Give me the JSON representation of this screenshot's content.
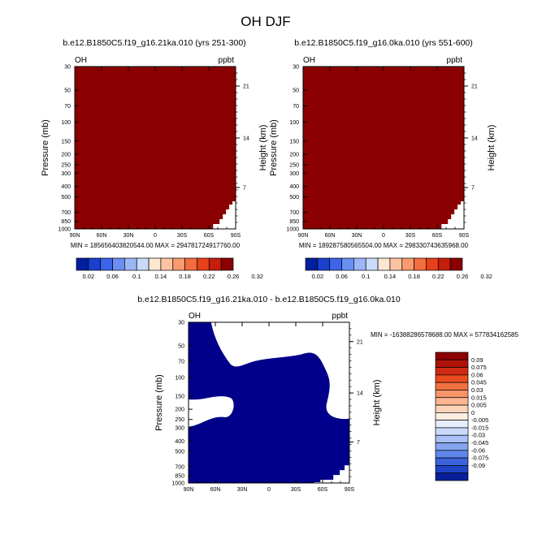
{
  "figure_title": "OH DJF",
  "colors": {
    "panel_fill": "#8b0000",
    "diff_fill": "#00008b",
    "background": "#ffffff"
  },
  "chart_data": [
    {
      "type": "heatmap",
      "title": "b.e12.B1850C5.f19_g16.21ka.010 (yrs 251-300)",
      "left_label": "OH",
      "right_label": "ppbt",
      "ylabel": "Pressure (mb)",
      "ylabel_right": "Height (km)",
      "x_ticks": [
        "90N",
        "60N",
        "30N",
        "0",
        "30S",
        "60S",
        "90S"
      ],
      "y_ticks": [
        "30",
        "50",
        "70",
        "100",
        "150",
        "200",
        "250",
        "300",
        "400",
        "500",
        "700",
        "850",
        "1000"
      ],
      "y_ticks_right": [
        "21",
        "14",
        "7"
      ],
      "stats": "MIN = 185656403820544.00  MAX = 294781724917760.00",
      "levels": [
        "0.02",
        "0.06",
        "0.1",
        "0.14",
        "0.18",
        "0.22",
        "0.26",
        "0.32"
      ],
      "fill": "saturated above top level"
    },
    {
      "type": "heatmap",
      "title": "b.e12.B1850C5.f19_g16.0ka.010 (yrs 551-600)",
      "left_label": "OH",
      "right_label": "ppbt",
      "ylabel": "Pressure (mb)",
      "ylabel_right": "Height (km)",
      "x_ticks": [
        "90N",
        "60N",
        "30N",
        "0",
        "30S",
        "60S",
        "90S"
      ],
      "y_ticks": [
        "30",
        "50",
        "70",
        "100",
        "150",
        "200",
        "250",
        "300",
        "400",
        "500",
        "700",
        "850",
        "1000"
      ],
      "y_ticks_right": [
        "21",
        "14",
        "7"
      ],
      "stats": "MIN = 189287580565504.00  MAX = 298330743635968.00",
      "levels": [
        "0.02",
        "0.06",
        "0.1",
        "0.14",
        "0.18",
        "0.22",
        "0.26",
        "0.32"
      ],
      "fill": "saturated above top level"
    },
    {
      "type": "heatmap",
      "title": "b.e12.B1850C5.f19_g16.21ka.010 - b.e12.B1850C5.f19_g16.0ka.010",
      "left_label": "OH",
      "right_label": "ppbt",
      "ylabel": "Pressure (mb)",
      "ylabel_right": "Height (km)",
      "x_ticks": [
        "90N",
        "60N",
        "30N",
        "0",
        "30S",
        "60S",
        "90S"
      ],
      "y_ticks": [
        "30",
        "50",
        "70",
        "100",
        "150",
        "200",
        "250",
        "300",
        "400",
        "500",
        "700",
        "850",
        "1000"
      ],
      "y_ticks_right": [
        "21",
        "14",
        "7"
      ],
      "stats": "MIN = -16388286578688.00  MAX = 577834162585",
      "levels": [
        "0.09",
        "0.075",
        "0.06",
        "0.045",
        "0.03",
        "0.015",
        "0.005",
        "0",
        "-0.005",
        "-0.015",
        "-0.03",
        "-0.045",
        "-0.06",
        "-0.075",
        "-0.09"
      ],
      "fill": "saturated below bottom level"
    }
  ]
}
